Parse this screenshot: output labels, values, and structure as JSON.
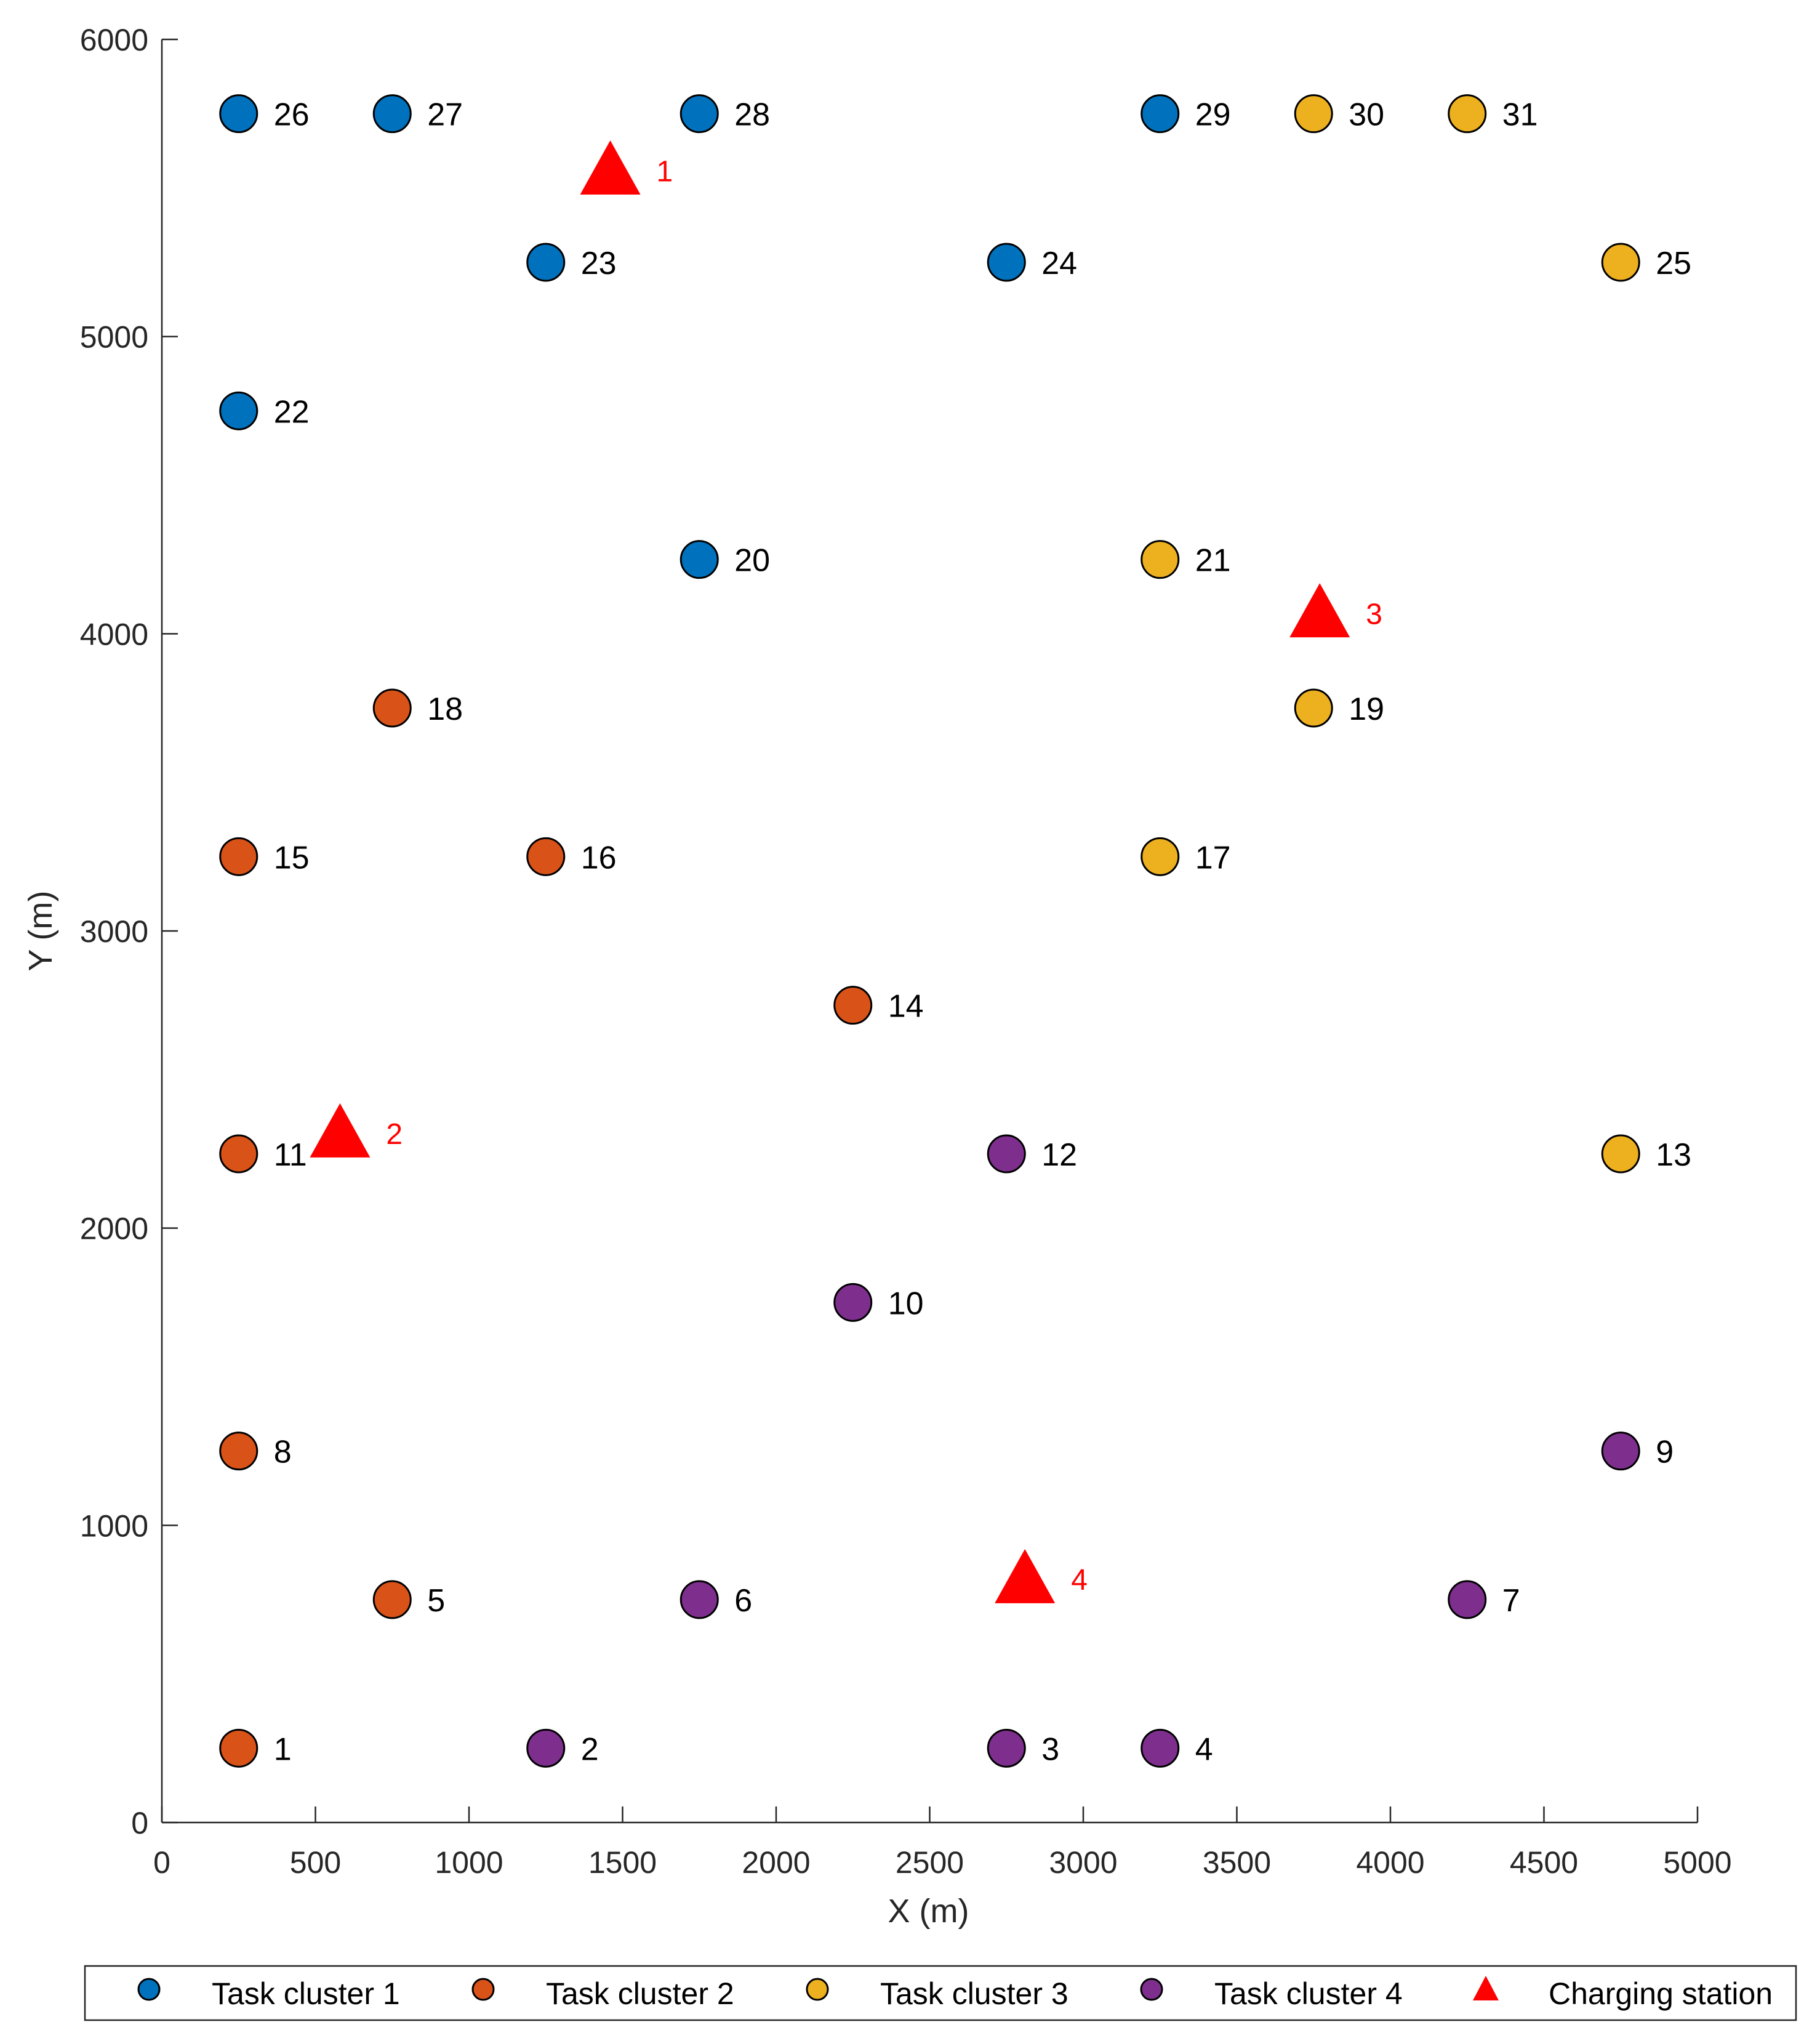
{
  "chart_data": {
    "type": "scatter",
    "title": "",
    "xlabel": "X (m)",
    "ylabel": "Y (m)",
    "xlim": [
      0,
      5000
    ],
    "ylim": [
      0,
      6000
    ],
    "x_ticks": [
      0,
      500,
      1000,
      1500,
      2000,
      2500,
      3000,
      3500,
      4000,
      4500,
      5000
    ],
    "y_ticks": [
      0,
      1000,
      2000,
      3000,
      4000,
      5000,
      6000
    ],
    "x_tick_labels": [
      "0",
      "500",
      "1000",
      "1500",
      "2000",
      "2500",
      "3000",
      "3500",
      "4000",
      "4500",
      "5000"
    ],
    "y_tick_labels": [
      "0",
      "1000",
      "2000",
      "3000",
      "4000",
      "5000",
      "6000"
    ],
    "grid": false,
    "legend_position": "bottom",
    "series": [
      {
        "name": "Task cluster 1",
        "color": "#0072BD",
        "marker": "circle",
        "points": [
          {
            "label": "20",
            "x": 1750,
            "y": 4250
          },
          {
            "label": "22",
            "x": 250,
            "y": 4750
          },
          {
            "label": "23",
            "x": 1250,
            "y": 5250
          },
          {
            "label": "24",
            "x": 2750,
            "y": 5250
          },
          {
            "label": "26",
            "x": 250,
            "y": 5750
          },
          {
            "label": "27",
            "x": 750,
            "y": 5750
          },
          {
            "label": "28",
            "x": 1750,
            "y": 5750
          },
          {
            "label": "29",
            "x": 3250,
            "y": 5750
          }
        ]
      },
      {
        "name": "Task cluster 2",
        "color": "#D95319",
        "marker": "circle",
        "points": [
          {
            "label": "1",
            "x": 250,
            "y": 250
          },
          {
            "label": "5",
            "x": 750,
            "y": 750
          },
          {
            "label": "8",
            "x": 250,
            "y": 1250
          },
          {
            "label": "11",
            "x": 250,
            "y": 2250
          },
          {
            "label": "14",
            "x": 2250,
            "y": 2750
          },
          {
            "label": "15",
            "x": 250,
            "y": 3250
          },
          {
            "label": "16",
            "x": 1250,
            "y": 3250
          },
          {
            "label": "18",
            "x": 750,
            "y": 3750
          }
        ]
      },
      {
        "name": "Task cluster 3",
        "color": "#EDB120",
        "marker": "circle",
        "points": [
          {
            "label": "13",
            "x": 4750,
            "y": 2250
          },
          {
            "label": "17",
            "x": 3250,
            "y": 3250
          },
          {
            "label": "19",
            "x": 3750,
            "y": 3750
          },
          {
            "label": "21",
            "x": 3250,
            "y": 4250
          },
          {
            "label": "25",
            "x": 4750,
            "y": 5250
          },
          {
            "label": "30",
            "x": 3750,
            "y": 5750
          },
          {
            "label": "31",
            "x": 4250,
            "y": 5750
          }
        ]
      },
      {
        "name": "Task cluster 4",
        "color": "#7E2F8E",
        "marker": "circle",
        "points": [
          {
            "label": "2",
            "x": 1250,
            "y": 250
          },
          {
            "label": "3",
            "x": 2750,
            "y": 250
          },
          {
            "label": "4",
            "x": 3250,
            "y": 250
          },
          {
            "label": "6",
            "x": 1750,
            "y": 750
          },
          {
            "label": "7",
            "x": 4250,
            "y": 750
          },
          {
            "label": "9",
            "x": 4750,
            "y": 1250
          },
          {
            "label": "10",
            "x": 2250,
            "y": 1750
          },
          {
            "label": "12",
            "x": 2750,
            "y": 2250
          }
        ]
      },
      {
        "name": "Charging station",
        "color": "#FF0000",
        "marker": "triangle",
        "points": [
          {
            "label": "1",
            "x": 1460,
            "y": 5560
          },
          {
            "label": "2",
            "x": 580,
            "y": 2320
          },
          {
            "label": "3",
            "x": 3770,
            "y": 4070
          },
          {
            "label": "4",
            "x": 2810,
            "y": 820
          }
        ]
      }
    ]
  }
}
